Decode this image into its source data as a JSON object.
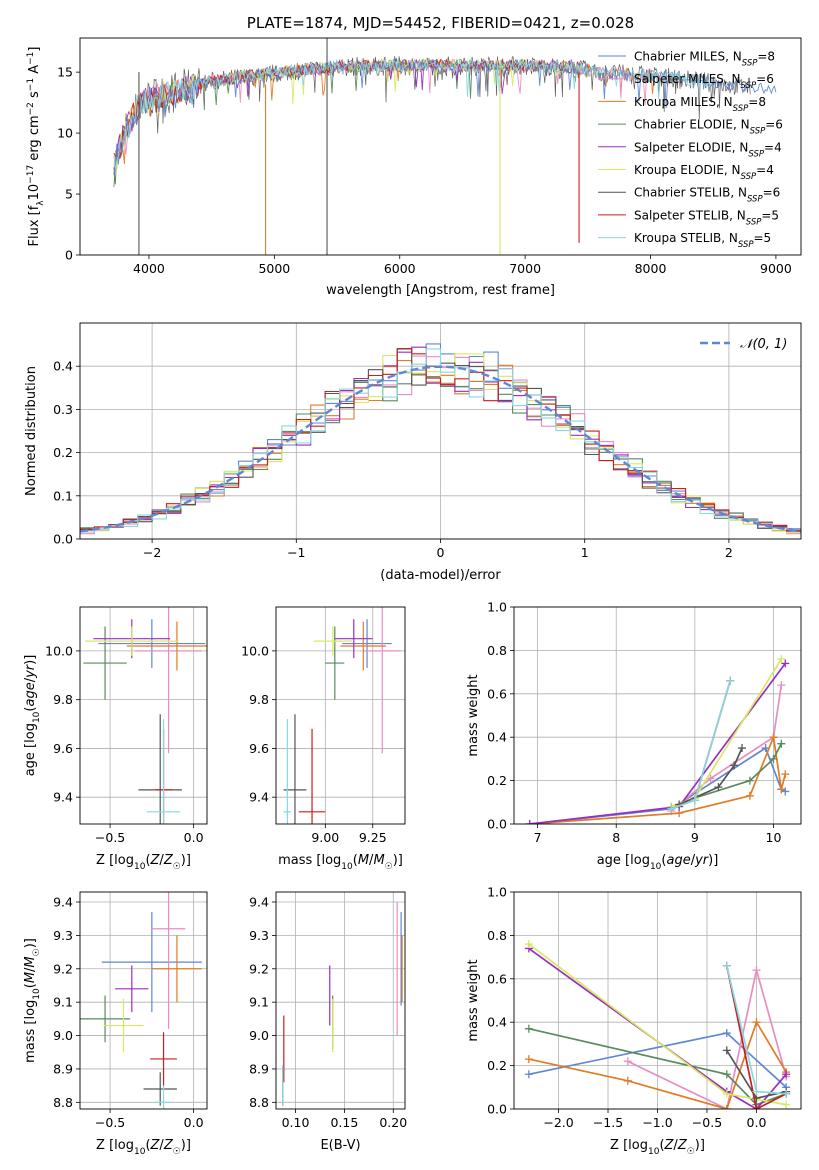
{
  "colors": {
    "series": [
      "#5f87d6",
      "#e98cc6",
      "#e07b26",
      "#5a8a5e",
      "#9a2fbf",
      "#d9e860",
      "#555555",
      "#c81e1e",
      "#86d9e0"
    ],
    "normal_curve": "#5f87d6",
    "grid": "#b0b0b0"
  },
  "chart_data": [
    {
      "id": "spectrum",
      "type": "line",
      "title": "PLATE=1874, MJD=54452, FIBERID=0421, z=0.028",
      "xlabel": "wavelength [Angstrom, rest frame]",
      "ylabel": "Flux [f_λ10^-17 erg cm^-2 s^-1 A^-1]",
      "xlim": [
        3450,
        9200
      ],
      "ylim": [
        0,
        17.8
      ],
      "xticks": [
        4000,
        5000,
        6000,
        7000,
        8000,
        9000
      ],
      "yticks": [
        0,
        5,
        10,
        15
      ],
      "grid": false,
      "legend_position": "top-right",
      "legend": [
        "Chabrier MILES, N_SSP=8",
        "Salpeter MILES, N_SSP=6",
        "Kroupa MILES, N_SSP=8",
        "Chabrier ELODIE, N_SSP=6",
        "Salpeter ELODIE, N_SSP=4",
        "Kroupa ELODIE, N_SSP=4",
        "Chabrier STELIB, N_SSP=6",
        "Salpeter STELIB, N_SSP=5",
        "Kroupa STELIB, N_SSP=5"
      ],
      "continuum": {
        "x": [
          3720,
          3800,
          3900,
          4000,
          4200,
          4500,
          5000,
          5500,
          6000,
          6500,
          7000,
          7400,
          7600,
          8000,
          8500,
          8800,
          9000
        ],
        "y": [
          7.5,
          10.0,
          12.0,
          13.0,
          13.5,
          14.3,
          15.0,
          15.5,
          15.6,
          15.6,
          15.6,
          15.4,
          15.0,
          14.8,
          14.2,
          13.8,
          13.5
        ]
      },
      "spikes": [
        {
          "x": 3920,
          "ymin": 0,
          "ymax": 15
        },
        {
          "x": 4930,
          "ymin": 0,
          "ymax": 14
        },
        {
          "x": 5420,
          "ymin": 0,
          "ymax": 17.8
        },
        {
          "x": 6800,
          "ymin": 0,
          "ymax": 16
        },
        {
          "x": 7430,
          "ymin": 1,
          "ymax": 15
        }
      ]
    },
    {
      "id": "residuals",
      "type": "histogram",
      "xlabel": "(data-model)/error",
      "ylabel": "Normed distribution",
      "xlim": [
        -2.5,
        2.5
      ],
      "ylim": [
        0,
        0.5
      ],
      "xticks": [
        -2,
        -1,
        0,
        1,
        2
      ],
      "yticks": [
        0.0,
        0.1,
        0.2,
        0.3,
        0.4
      ],
      "grid": true,
      "legend_position": "top-right",
      "legend": [
        "𝒩(0, 1)"
      ],
      "bin_width": 0.1
    },
    {
      "id": "age_vs_Z",
      "type": "errorbar",
      "xlabel": "Z [log₁₀(Z/Z☉)]",
      "ylabel": "age  [log₁₀(age/yr)]",
      "xlim": [
        -0.68,
        0.08
      ],
      "ylim": [
        9.29,
        10.18
      ],
      "xticks": [
        -0.5,
        0.0
      ],
      "yticks": [
        9.4,
        9.6,
        9.8,
        10.0
      ],
      "grid": true,
      "points": [
        {
          "x": -0.25,
          "y": 10.03,
          "xerr": 0.32,
          "yerr": 0.1
        },
        {
          "x": -0.15,
          "y": 10.0,
          "xerr": 0.2,
          "yerr": 0.42
        },
        {
          "x": -0.1,
          "y": 10.02,
          "xerr": 0.3,
          "yerr": 0.1
        },
        {
          "x": -0.53,
          "y": 9.95,
          "xerr": 0.13,
          "yerr": 0.15
        },
        {
          "x": -0.37,
          "y": 10.05,
          "xerr": 0.23,
          "yerr": 0.08
        },
        {
          "x": -0.37,
          "y": 10.04,
          "xerr": 0.28,
          "yerr": 0.06
        },
        {
          "x": -0.2,
          "y": 9.43,
          "xerr": 0.13,
          "yerr": 0.31
        },
        {
          "x": -0.18,
          "y": 9.43,
          "xerr": 0.05,
          "yerr": 0.25
        },
        {
          "x": -0.18,
          "y": 9.34,
          "xerr": 0.1,
          "yerr": 0.38
        }
      ]
    },
    {
      "id": "age_vs_mass",
      "type": "errorbar",
      "xlabel": "mass [log₁₀(M/M☉)]",
      "ylabel": "",
      "xlim": [
        8.74,
        9.42
      ],
      "ylim": [
        9.29,
        10.18
      ],
      "xticks": [
        9.0,
        9.25
      ],
      "yticks": [
        9.4,
        9.6,
        9.8,
        10.0
      ],
      "grid": true,
      "points": [
        {
          "x": 9.22,
          "y": 10.03,
          "xerr": 0.13,
          "yerr": 0.1
        },
        {
          "x": 9.3,
          "y": 10.0,
          "xerr": 0.1,
          "yerr": 0.42
        },
        {
          "x": 9.2,
          "y": 10.02,
          "xerr": 0.12,
          "yerr": 0.1
        },
        {
          "x": 9.05,
          "y": 9.95,
          "xerr": 0.05,
          "yerr": 0.15
        },
        {
          "x": 9.15,
          "y": 10.05,
          "xerr": 0.1,
          "yerr": 0.08
        },
        {
          "x": 9.04,
          "y": 10.04,
          "xerr": 0.1,
          "yerr": 0.06
        },
        {
          "x": 8.84,
          "y": 9.43,
          "xerr": 0.06,
          "yerr": 0.31
        },
        {
          "x": 8.93,
          "y": 9.34,
          "xerr": 0.07,
          "yerr": 0.34
        },
        {
          "x": 8.8,
          "y": 9.34,
          "xerr": 0.02,
          "yerr": 0.38
        }
      ]
    },
    {
      "id": "mass_weight_vs_age",
      "type": "line",
      "xlabel": "age  [log₁₀(age/yr)]",
      "ylabel": "mass weight",
      "xlim": [
        6.7,
        10.35
      ],
      "ylim": [
        0,
        1.0
      ],
      "xticks": [
        7,
        8,
        9,
        10
      ],
      "yticks": [
        0.0,
        0.2,
        0.4,
        0.6,
        0.8,
        1.0
      ],
      "grid": true,
      "series": [
        {
          "x": [
            6.9,
            8.7,
            9.9,
            10.1,
            10.15
          ],
          "y": [
            0.0,
            0.07,
            0.35,
            0.16,
            0.15
          ]
        },
        {
          "x": [
            8.7,
            9.2,
            10.0,
            10.1
          ],
          "y": [
            0.06,
            0.21,
            0.4,
            0.64
          ]
        },
        {
          "x": [
            6.9,
            8.8,
            9.7,
            10.0,
            10.1,
            10.15
          ],
          "y": [
            0.0,
            0.05,
            0.13,
            0.4,
            0.16,
            0.23
          ]
        },
        {
          "x": [
            8.7,
            9.0,
            9.7,
            10.0,
            10.1
          ],
          "y": [
            0.08,
            0.12,
            0.2,
            0.3,
            0.37
          ]
        },
        {
          "x": [
            6.9,
            8.8,
            10.15
          ],
          "y": [
            0.0,
            0.08,
            0.74
          ]
        },
        {
          "x": [
            8.7,
            9.0,
            10.1
          ],
          "y": [
            0.08,
            0.12,
            0.76
          ]
        },
        {
          "x": [
            8.8,
            9.3,
            9.5,
            9.6
          ],
          "y": [
            0.09,
            0.17,
            0.27,
            0.35
          ]
        },
        {
          "x": [
            8.7,
            9.0,
            9.45
          ],
          "y": [
            0.07,
            0.11,
            0.66
          ]
        },
        {
          "x": [
            8.7,
            9.0,
            9.45
          ],
          "y": [
            0.07,
            0.11,
            0.66
          ]
        }
      ]
    },
    {
      "id": "mass_vs_Z",
      "type": "errorbar",
      "xlabel": "Z [log₁₀(Z/Z☉)]",
      "ylabel": "mass [log₁₀(M/M☉)]",
      "xlim": [
        -0.68,
        0.08
      ],
      "ylim": [
        8.78,
        9.43
      ],
      "xticks": [
        -0.5,
        0.0
      ],
      "yticks": [
        8.8,
        8.9,
        9.0,
        9.1,
        9.2,
        9.3,
        9.4
      ],
      "grid": true,
      "points": [
        {
          "x": -0.25,
          "y": 9.22,
          "xerr": 0.3,
          "yerr": 0.15
        },
        {
          "x": -0.15,
          "y": 9.32,
          "xerr": 0.1,
          "yerr": 0.3
        },
        {
          "x": -0.1,
          "y": 9.2,
          "xerr": 0.15,
          "yerr": 0.1
        },
        {
          "x": -0.53,
          "y": 9.05,
          "xerr": 0.15,
          "yerr": 0.07
        },
        {
          "x": -0.37,
          "y": 9.14,
          "xerr": 0.1,
          "yerr": 0.07
        },
        {
          "x": -0.42,
          "y": 9.03,
          "xerr": 0.12,
          "yerr": 0.08
        },
        {
          "x": -0.2,
          "y": 8.84,
          "xerr": 0.1,
          "yerr": 0.05
        },
        {
          "x": -0.18,
          "y": 8.93,
          "xerr": 0.08,
          "yerr": 0.08
        },
        {
          "x": -0.18,
          "y": 8.8,
          "xerr": 0.05,
          "yerr": 0.05
        }
      ]
    },
    {
      "id": "mass_vs_ebv",
      "type": "errorbar",
      "xlabel": "E(B-V)",
      "ylabel": "",
      "xlim": [
        0.08,
        0.212
      ],
      "ylim": [
        8.78,
        9.43
      ],
      "xticks": [
        0.1,
        0.15,
        0.2
      ],
      "yticks": [
        8.8,
        8.9,
        9.0,
        9.1,
        9.2,
        9.3,
        9.4
      ],
      "grid": true,
      "points": [
        {
          "x": 0.208,
          "y": 9.23,
          "xerr": 0,
          "yerr": 0.14
        },
        {
          "x": 0.204,
          "y": 9.2,
          "xerr": 0,
          "yerr": 0.2
        },
        {
          "x": 0.209,
          "y": 9.2,
          "xerr": 0,
          "yerr": 0.1
        },
        {
          "x": 0.138,
          "y": 9.04,
          "xerr": 0,
          "yerr": 0.08
        },
        {
          "x": 0.135,
          "y": 9.12,
          "xerr": 0,
          "yerr": 0.09
        },
        {
          "x": 0.138,
          "y": 9.03,
          "xerr": 0,
          "yerr": 0.08
        },
        {
          "x": 0.087,
          "y": 8.85,
          "xerr": 0,
          "yerr": 0.06
        },
        {
          "x": 0.088,
          "y": 8.96,
          "xerr": 0,
          "yerr": 0.1
        },
        {
          "x": 0.087,
          "y": 8.85,
          "xerr": 0,
          "yerr": 0.06
        }
      ]
    },
    {
      "id": "mass_weight_vs_Z",
      "type": "line",
      "xlabel": "Z [log₁₀(Z/Z☉)]",
      "ylabel": "mass weight",
      "xlim": [
        -2.45,
        0.45
      ],
      "ylim": [
        0,
        1.0
      ],
      "xticks": [
        -2.0,
        -1.5,
        -1.0,
        -0.5,
        0.0
      ],
      "yticks": [
        0.0,
        0.2,
        0.4,
        0.6,
        0.8,
        1.0
      ],
      "grid": true,
      "series": [
        {
          "x": [
            -2.3,
            -0.3,
            0.3
          ],
          "y": [
            0.16,
            0.35,
            0.1
          ]
        },
        {
          "x": [
            -1.3,
            -0.3,
            0.0,
            0.3
          ],
          "y": [
            0.22,
            0.0,
            0.64,
            0.15
          ]
        },
        {
          "x": [
            -2.3,
            -1.3,
            -0.3,
            0.0,
            0.3
          ],
          "y": [
            0.23,
            0.13,
            0.0,
            0.4,
            0.17
          ]
        },
        {
          "x": [
            -2.3,
            -0.3,
            0.0,
            0.3
          ],
          "y": [
            0.37,
            0.16,
            0.02,
            0.07
          ]
        },
        {
          "x": [
            -2.3,
            -0.3,
            0.0,
            0.3
          ],
          "y": [
            0.74,
            0.08,
            0.0,
            0.16
          ]
        },
        {
          "x": [
            -2.3,
            -0.3,
            0.3
          ],
          "y": [
            0.76,
            0.07,
            0.02
          ]
        },
        {
          "x": [
            -0.3,
            0.0,
            0.3
          ],
          "y": [
            0.27,
            0.05,
            0.08
          ]
        },
        {
          "x": [
            -0.3,
            0.0,
            0.3
          ],
          "y": [
            0.66,
            0.0,
            0.07
          ]
        },
        {
          "x": [
            -0.3,
            0.0,
            0.3
          ],
          "y": [
            0.66,
            0.08,
            0.07
          ]
        }
      ]
    }
  ]
}
